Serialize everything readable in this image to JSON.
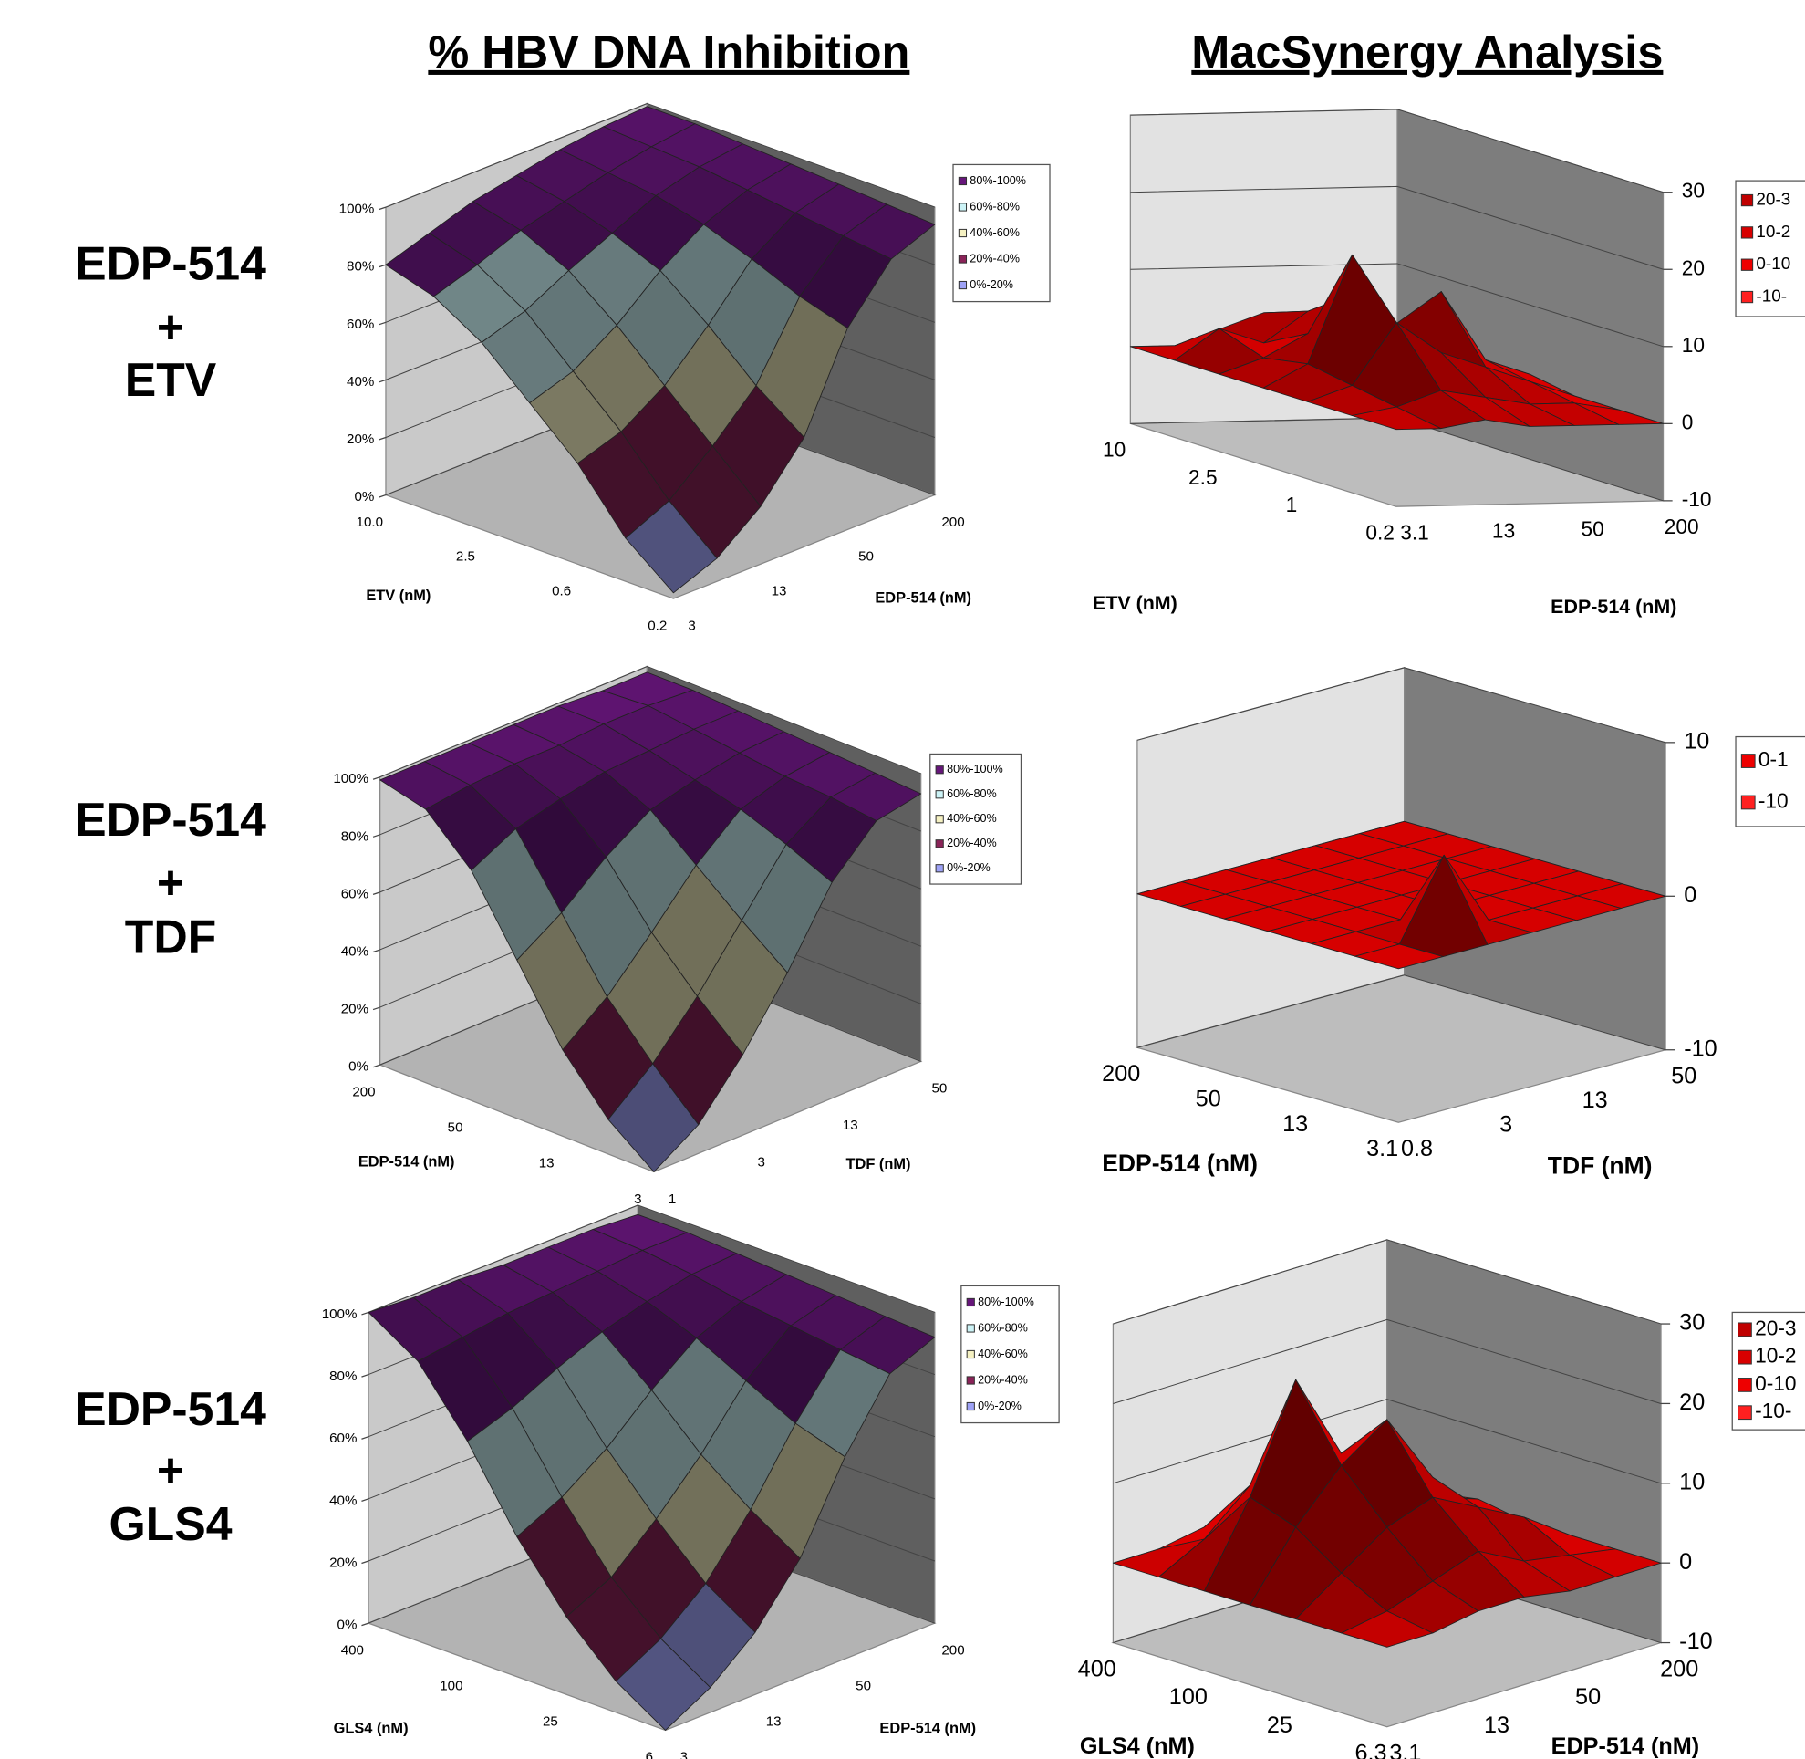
{
  "header": {
    "left": "% HBV DNA Inhibition",
    "right": "MacSynergy Analysis"
  },
  "row_labels": [
    [
      "EDP-514",
      "+",
      "ETV"
    ],
    [
      "EDP-514",
      "+",
      "TDF"
    ],
    [
      "EDP-514",
      "+",
      "GLS4"
    ]
  ],
  "chart_data": [
    {
      "type": "surface",
      "x_label": "ETV (nM)",
      "y_label": "EDP-514 (nM)",
      "x_categories": [
        "10.0",
        null,
        "2.5",
        null,
        "0.6",
        null,
        "0.2"
      ],
      "y_categories": [
        "3",
        null,
        "13",
        null,
        "50",
        null,
        "200"
      ],
      "zlim": [
        0,
        100
      ],
      "zticks": [
        {
          "value": 0,
          "label": "0%"
        },
        {
          "value": 20,
          "label": "20%"
        },
        {
          "value": 40,
          "label": "40%"
        },
        {
          "value": 60,
          "label": "60%"
        },
        {
          "value": 80,
          "label": "80%"
        },
        {
          "value": 100,
          "label": "100%"
        }
      ],
      "legend": [
        {
          "label": "80%-100%",
          "color": "#66167a"
        },
        {
          "label": "60%-80%",
          "color": "#ccf3f6"
        },
        {
          "label": "40%-60%",
          "color": "#f5f1c2"
        },
        {
          "label": "20%-40%",
          "color": "#8a2358"
        },
        {
          "label": "0%-20%",
          "color": "#9ea2f6"
        }
      ],
      "z": [
        [
          80,
          85,
          90,
          93,
          96,
          98,
          99
        ],
        [
          75,
          80,
          86,
          90,
          94,
          97,
          99
        ],
        [
          65,
          70,
          78,
          85,
          92,
          96,
          98
        ],
        [
          50,
          55,
          65,
          78,
          88,
          94,
          97
        ],
        [
          35,
          40,
          50,
          65,
          82,
          92,
          96
        ],
        [
          15,
          22,
          35,
          50,
          75,
          90,
          95
        ],
        [
          2,
          8,
          20,
          38,
          70,
          88,
          94
        ]
      ]
    },
    {
      "type": "surface",
      "x_label": "EDP-514 (nM)",
      "y_label": "TDF (nM)",
      "x_categories": [
        "200",
        null,
        "50",
        null,
        "13",
        null,
        "3"
      ],
      "y_categories": [
        "1",
        null,
        "3",
        null,
        "13",
        null,
        "50"
      ],
      "zlim": [
        0,
        100
      ],
      "zticks": [
        {
          "value": 0,
          "label": "0%"
        },
        {
          "value": 20,
          "label": "20%"
        },
        {
          "value": 40,
          "label": "40%"
        },
        {
          "value": 60,
          "label": "60%"
        },
        {
          "value": 80,
          "label": "80%"
        },
        {
          "value": 100,
          "label": "100%"
        }
      ],
      "legend": [
        {
          "label": "80%-100%",
          "color": "#66167a"
        },
        {
          "label": "60%-80%",
          "color": "#ccf3f6"
        },
        {
          "label": "40%-60%",
          "color": "#f5f1c2"
        },
        {
          "label": "20%-40%",
          "color": "#8a2358"
        },
        {
          "label": "0%-20%",
          "color": "#9ea2f6"
        }
      ],
      "z": [
        [
          99,
          99,
          99,
          99,
          99,
          98,
          98
        ],
        [
          95,
          97,
          98,
          98,
          99,
          99,
          98
        ],
        [
          80,
          88,
          92,
          95,
          96,
          97,
          97
        ],
        [
          55,
          65,
          78,
          88,
          92,
          95,
          96
        ],
        [
          30,
          42,
          58,
          75,
          88,
          93,
          95
        ],
        [
          12,
          25,
          42,
          62,
          82,
          92,
          94
        ],
        [
          0,
          10,
          28,
          50,
          75,
          90,
          93
        ]
      ]
    },
    {
      "type": "surface",
      "x_label": "GLS4 (nM)",
      "y_label": "EDP-514 (nM)",
      "x_categories": [
        "400",
        null,
        "100",
        null,
        "25",
        null,
        "6"
      ],
      "y_categories": [
        "3",
        null,
        "13",
        null,
        "50",
        null,
        "200"
      ],
      "zlim": [
        0,
        100
      ],
      "zticks": [
        {
          "value": 0,
          "label": "0%"
        },
        {
          "value": 20,
          "label": "20%"
        },
        {
          "value": 40,
          "label": "40%"
        },
        {
          "value": 60,
          "label": "60%"
        },
        {
          "value": 80,
          "label": "80%"
        },
        {
          "value": 100,
          "label": "100%"
        }
      ],
      "legend": [
        {
          "label": "80%-100%",
          "color": "#66167a"
        },
        {
          "label": "60%-80%",
          "color": "#ccf3f6"
        },
        {
          "label": "40%-60%",
          "color": "#f5f1c2"
        },
        {
          "label": "20%-40%",
          "color": "#8a2358"
        },
        {
          "label": "0%-20%",
          "color": "#9ea2f6"
        }
      ],
      "z": [
        [
          100,
          99,
          99,
          98,
          98,
          98,
          97
        ],
        [
          90,
          92,
          94,
          95,
          96,
          97,
          97
        ],
        [
          70,
          75,
          82,
          88,
          92,
          95,
          96
        ],
        [
          45,
          52,
          62,
          75,
          86,
          92,
          95
        ],
        [
          25,
          32,
          45,
          60,
          78,
          90,
          94
        ],
        [
          10,
          18,
          30,
          48,
          70,
          88,
          93
        ],
        [
          0,
          8,
          20,
          38,
          65,
          86,
          92
        ]
      ]
    },
    {
      "type": "surface",
      "x_label": "ETV (nM)",
      "y_label": "EDP-514 (nM)",
      "x_categories": [
        "10",
        null,
        "2.5",
        null,
        "1",
        null,
        "0.2"
      ],
      "y_categories": [
        "3.1",
        null,
        "13",
        null,
        "50",
        null,
        "200"
      ],
      "zlim": [
        -10,
        30
      ],
      "zticks": [
        -10,
        0,
        10,
        20,
        30
      ],
      "legend": [
        {
          "label": "20-3",
          "color": "#c00000"
        },
        {
          "label": "10-2",
          "color": "#d80000"
        },
        {
          "label": "0-10",
          "color": "#ee0000"
        },
        {
          "label": "-10-",
          "color": "#ff2020"
        }
      ],
      "z": [
        [
          0,
          0,
          2,
          4,
          3,
          1,
          0
        ],
        [
          0,
          4,
          2,
          6,
          8,
          3,
          0
        ],
        [
          0,
          2,
          5,
          10,
          4,
          2,
          0
        ],
        [
          0,
          3,
          17,
          8,
          12,
          3,
          1
        ],
        [
          0,
          2,
          10,
          6,
          4,
          2,
          0
        ],
        [
          0,
          1,
          3,
          2,
          1,
          1,
          0
        ],
        [
          0,
          0,
          1,
          0,
          0,
          0,
          0
        ]
      ]
    },
    {
      "type": "surface",
      "x_label": "EDP-514 (nM)",
      "y_label": "TDF (nM)",
      "x_categories": [
        "200",
        null,
        "50",
        null,
        "13",
        null,
        "3.1"
      ],
      "y_categories": [
        "0.8",
        null,
        "3",
        null,
        "13",
        null,
        "50"
      ],
      "zlim": [
        -10,
        10
      ],
      "zticks": [
        -10,
        0,
        10
      ],
      "legend": [
        {
          "label": "0-1",
          "color": "#ee0000"
        },
        {
          "label": "-10",
          "color": "#ff2020"
        }
      ],
      "z": [
        [
          0,
          0,
          0,
          0,
          0,
          0,
          0
        ],
        [
          0,
          0,
          0,
          0,
          0,
          0,
          0
        ],
        [
          0,
          0,
          0,
          0,
          0,
          0,
          0
        ],
        [
          0,
          0,
          0,
          0,
          0,
          0,
          0
        ],
        [
          0,
          0,
          0,
          0,
          0,
          0,
          0
        ],
        [
          0,
          0,
          5,
          0,
          0,
          0,
          0
        ],
        [
          0,
          0,
          0,
          0,
          0,
          0,
          0
        ]
      ]
    },
    {
      "type": "surface",
      "x_label": "GLS4 (nM)",
      "y_label": "EDP-514 (nM)",
      "x_categories": [
        "400",
        null,
        "100",
        null,
        "25",
        null,
        "6.3"
      ],
      "y_categories": [
        "3.1",
        null,
        "13",
        null,
        "50",
        null,
        "200"
      ],
      "zlim": [
        -10,
        30
      ],
      "zticks": [
        -10,
        0,
        10,
        20,
        30
      ],
      "legend": [
        {
          "label": "20-3",
          "color": "#c00000"
        },
        {
          "label": "10-2",
          "color": "#d80000"
        },
        {
          "label": "0-10",
          "color": "#ee0000"
        },
        {
          "label": "-10-",
          "color": "#ff2020"
        }
      ],
      "z": [
        [
          0,
          0,
          1,
          2,
          1,
          0,
          0
        ],
        [
          0,
          3,
          8,
          4,
          2,
          1,
          0
        ],
        [
          0,
          10,
          23,
          12,
          4,
          3,
          1
        ],
        [
          0,
          8,
          14,
          18,
          9,
          2,
          0
        ],
        [
          0,
          4,
          8,
          10,
          7,
          4,
          0
        ],
        [
          0,
          1,
          3,
          5,
          2,
          1,
          0
        ],
        [
          0,
          0,
          1,
          1,
          0,
          0,
          0
        ]
      ]
    }
  ]
}
